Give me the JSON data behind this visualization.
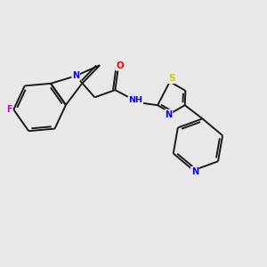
{
  "background_color": "#e8e8e8",
  "bond_color": "#1a1a1a",
  "atom_colors": {
    "N": "#0000ff",
    "O": "#ff0000",
    "S": "#cccc00",
    "F": "#cc00cc",
    "C": "#1a1a1a"
  },
  "figsize": [
    3.0,
    3.0
  ],
  "dpi": 100,
  "lw": 1.4
}
